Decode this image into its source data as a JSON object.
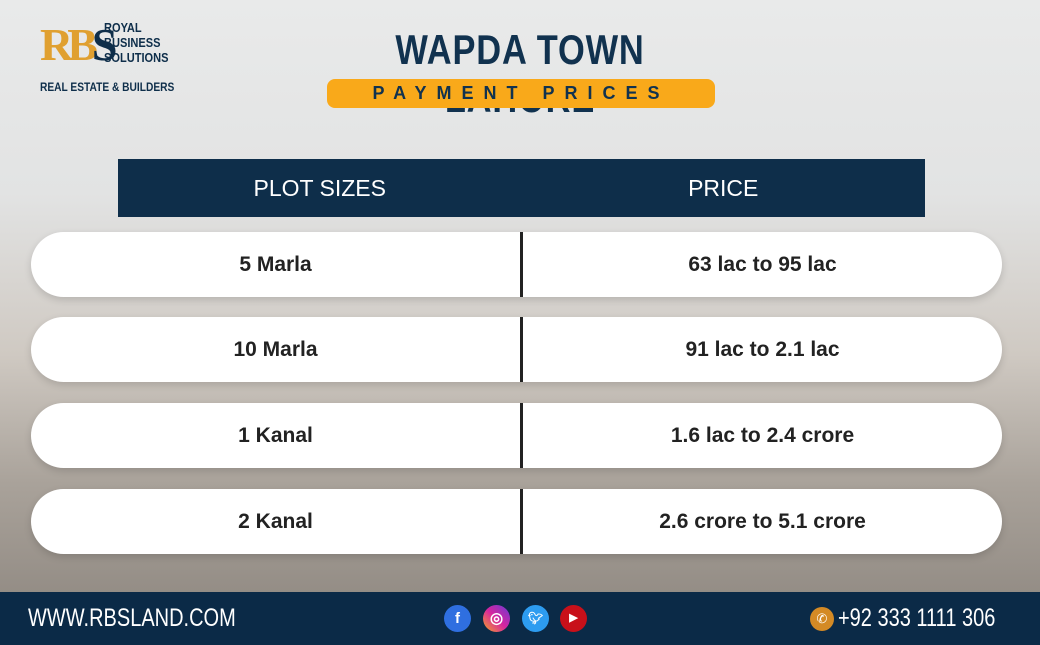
{
  "logo": {
    "monogram": "RBS",
    "name": "ROYAL BUSINESS SOLUTIONS",
    "subtitle": "REAL ESTATE & BUILDERS"
  },
  "title": "WAPDA TOWN LAHORE",
  "subtitle": "PAYMENT PRICES",
  "table": {
    "headers": [
      "PLOT SIZES",
      "PRICE"
    ],
    "rows": [
      [
        "5 Marla",
        "63 lac to 95 lac"
      ],
      [
        "10 Marla",
        "91 lac to 2.1 lac"
      ],
      [
        "1 Kanal",
        "1.6 lac to 2.4 crore"
      ],
      [
        "2 Kanal",
        "2.6 crore to 5.1 crore"
      ]
    ]
  },
  "footer": {
    "website": "WWW.RBSLAND.COM",
    "phone": "+92 333 1111 306",
    "social": [
      "facebook-icon",
      "instagram-icon",
      "twitter-icon",
      "youtube-icon"
    ]
  },
  "colors": {
    "navy": "#0e2e4a",
    "accent": "#f9a91a"
  }
}
